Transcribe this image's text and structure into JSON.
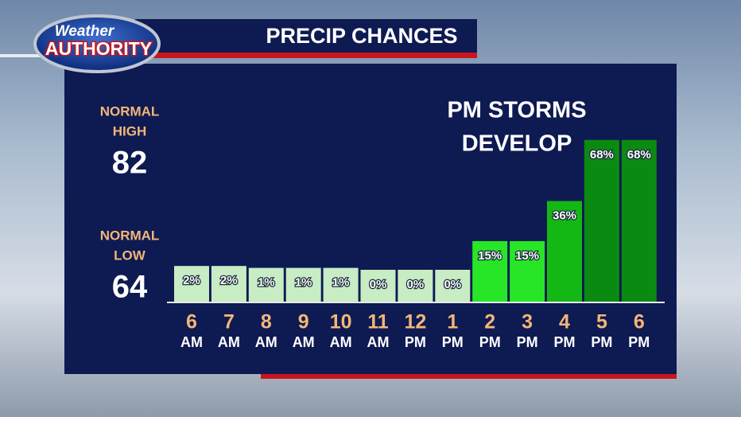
{
  "chart_data": {
    "type": "bar",
    "title": "PRECIP CHANCES",
    "annotation": [
      "PM STORMS",
      "DEVELOP"
    ],
    "categories": [
      {
        "hour": "6",
        "period": "AM"
      },
      {
        "hour": "7",
        "period": "AM"
      },
      {
        "hour": "8",
        "period": "AM"
      },
      {
        "hour": "9",
        "period": "AM"
      },
      {
        "hour": "10",
        "period": "AM"
      },
      {
        "hour": "11",
        "period": "AM"
      },
      {
        "hour": "12",
        "period": "PM"
      },
      {
        "hour": "1",
        "period": "PM"
      },
      {
        "hour": "2",
        "period": "PM"
      },
      {
        "hour": "3",
        "period": "PM"
      },
      {
        "hour": "4",
        "period": "PM"
      },
      {
        "hour": "5",
        "period": "PM"
      },
      {
        "hour": "6",
        "period": "PM"
      }
    ],
    "values": [
      2,
      2,
      1,
      1,
      1,
      0,
      0,
      0,
      15,
      15,
      36,
      68,
      68
    ],
    "value_labels": [
      "2%",
      "2%",
      "1%",
      "1%",
      "1%",
      "0%",
      "0%",
      "0%",
      "15%",
      "15%",
      "36%",
      "68%",
      "68%"
    ],
    "colors": [
      "#c8ecc4",
      "#c8ecc4",
      "#c8ecc4",
      "#c8ecc4",
      "#c8ecc4",
      "#c8ecc4",
      "#c8ecc4",
      "#c8ecc4",
      "#27e627",
      "#27e627",
      "#14b814",
      "#0b8a12",
      "#0b8a12"
    ]
  },
  "logo": [
    "Weather",
    "AUTHORITY"
  ],
  "normals": [
    {
      "label": [
        "NORMAL",
        "HIGH"
      ],
      "value": 82
    },
    {
      "label": [
        "NORMAL",
        "LOW"
      ],
      "value": 64
    }
  ]
}
